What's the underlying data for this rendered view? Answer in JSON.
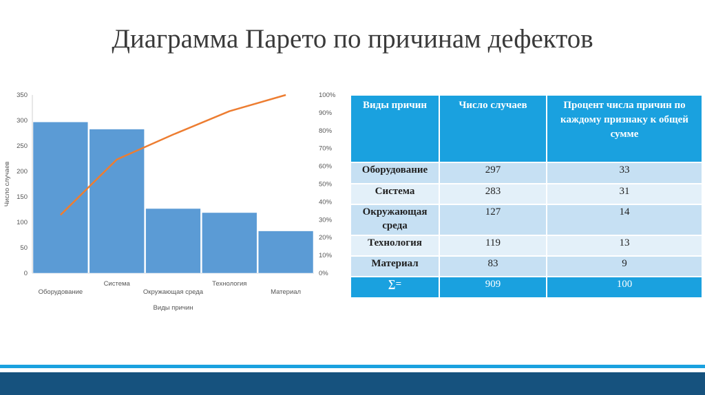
{
  "slide": {
    "title": "Диаграмма Парето по причинам дефектов"
  },
  "chart_data": {
    "type": "bar",
    "categories": [
      "Оборудование",
      "Система",
      "Окружающая среда",
      "Технология",
      "Материал"
    ],
    "values": [
      297,
      283,
      127,
      119,
      83
    ],
    "cumulative_percent": [
      32.7,
      63.8,
      77.8,
      90.9,
      100
    ],
    "xlabel": "Виды причин",
    "ylabel": "Число случаев",
    "ylim": [
      0,
      350
    ],
    "y_ticks": [
      "0",
      "50",
      "100",
      "150",
      "200",
      "250",
      "300",
      "350"
    ],
    "y2lim": [
      0,
      100
    ],
    "y2_ticks": [
      "0%",
      "10%",
      "20%",
      "30%",
      "40%",
      "50%",
      "60%",
      "70%",
      "80%",
      "90%",
      "100%"
    ],
    "bar_color": "#5b9bd5",
    "line_color": "#ed7d31",
    "grid": false
  },
  "table": {
    "headers": [
      "Виды причин",
      "Число случаев",
      "Процент числа причин по каждому признаку к общей сумме"
    ],
    "rows": [
      [
        "Оборудование",
        "297",
        "33"
      ],
      [
        "Система",
        "283",
        "31"
      ],
      [
        "Окружающая среда",
        "127",
        "14"
      ],
      [
        "Технология",
        "119",
        "13"
      ],
      [
        "Материал",
        "83",
        "9"
      ],
      [
        "∑=",
        "909",
        "100"
      ]
    ]
  },
  "colors": {
    "header_blue": "#1aa1df",
    "row_dark": "#c6e0f3",
    "row_light": "#e3f0f9",
    "footer_dark": "#16527e"
  }
}
